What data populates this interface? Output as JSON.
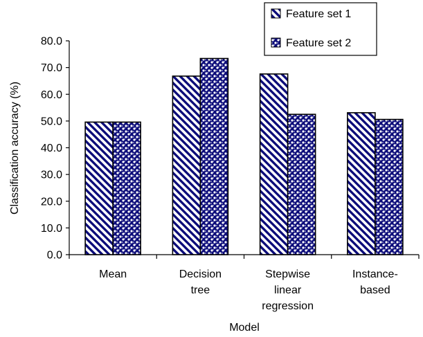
{
  "chart_data": {
    "type": "bar",
    "categories": [
      [
        "Mean"
      ],
      [
        "Decision",
        "tree"
      ],
      [
        "Stepwise",
        "linear",
        "regression"
      ],
      [
        "Instance-",
        "based"
      ]
    ],
    "series": [
      {
        "name": "Feature set 1",
        "values": [
          49.6,
          66.8,
          67.6,
          53.1
        ],
        "pattern": "diagonal-stripes"
      },
      {
        "name": "Feature set 2",
        "values": [
          49.6,
          73.4,
          52.5,
          50.6
        ],
        "pattern": "checker-dots"
      }
    ],
    "xlabel": "Model",
    "ylabel": "Classification accuracy (%)",
    "ylim": [
      0,
      80
    ],
    "yticks": [
      "0.0",
      "10.0",
      "20.0",
      "30.0",
      "40.0",
      "50.0",
      "60.0",
      "70.0",
      "80.0"
    ],
    "ytick_values": [
      0,
      10,
      20,
      30,
      40,
      50,
      60,
      70,
      80
    ],
    "grid": false,
    "legend_position": "top-right",
    "colors": {
      "pattern_dark": "#0c0c7a",
      "pattern_light": "#ffffff",
      "outline": "#000000"
    }
  }
}
